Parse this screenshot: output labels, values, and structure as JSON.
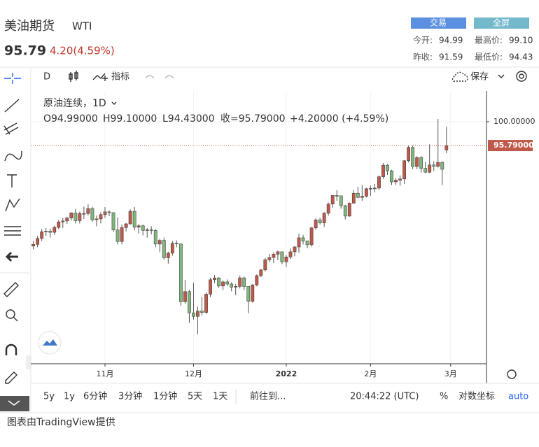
{
  "header": {
    "title": "美油期货",
    "symbol": "WTI",
    "price": "95.79",
    "change": "4.20(4.59%)",
    "buttons": [
      "交易",
      "全屏"
    ],
    "stats": [
      [
        "今开:",
        "94.99"
      ],
      [
        "最高价:",
        "99.10"
      ],
      [
        "昨收:",
        "91.59"
      ],
      [
        "最低价:",
        "94.43"
      ]
    ]
  },
  "toolbar": {
    "interval": "D",
    "indicators": "指标",
    "save": "保存"
  },
  "legend": {
    "name": "原油连续，1D",
    "ohlc": [
      "O94.99000",
      "H99.10000",
      "L94.43000",
      "收=95.79000",
      "+4.20000 (+4.59%)"
    ]
  },
  "bottom_bar": {
    "ranges": [
      "5y",
      "1y",
      "6分钟",
      "3分钟",
      "1分钟",
      "5天",
      "1天"
    ],
    "goto": "前往到...",
    "time": "20:44:22 (UTC)",
    "percent": "%",
    "log": "对数坐标",
    "auto": "auto"
  },
  "footer": "图表由TradingView提供",
  "chart_data": {
    "type": "candlestick",
    "up_color": "#c0584a",
    "down_color": "#7fb87a",
    "grid": true,
    "xlim": [
      -0.6,
      107.5
    ],
    "ylim": [
      57.18,
      105.45
    ],
    "yticks": [
      {
        "value": 100,
        "label": "100.00000"
      }
    ],
    "xticks": [
      {
        "value": 17,
        "label": "11月"
      },
      {
        "value": 38,
        "label": "12月"
      },
      {
        "value": 60,
        "label": "2022"
      },
      {
        "value": 80,
        "label": "2月"
      },
      {
        "value": 99,
        "label": "3月"
      }
    ],
    "price_line": {
      "value": 95.79,
      "label": "95.79000"
    },
    "candles": [
      [
        78.0,
        78.9,
        77.4,
        78.3
      ],
      [
        78.3,
        79.8,
        77.8,
        79.35
      ],
      [
        79.35,
        81.0,
        78.9,
        80.52
      ],
      [
        80.52,
        81.2,
        79.8,
        80.64
      ],
      [
        80.64,
        81.1,
        79.5,
        80.44
      ],
      [
        80.44,
        81.6,
        80.0,
        81.31
      ],
      [
        81.31,
        82.6,
        81.0,
        82.28
      ],
      [
        82.28,
        83.0,
        81.2,
        82.44
      ],
      [
        82.44,
        83.2,
        81.9,
        82.96
      ],
      [
        82.96,
        84.0,
        82.5,
        83.87
      ],
      [
        83.87,
        84.6,
        82.0,
        82.5
      ],
      [
        82.5,
        84.1,
        82.0,
        83.76
      ],
      [
        83.76,
        85.0,
        82.8,
        83.76
      ],
      [
        83.76,
        85.4,
        83.4,
        84.65
      ],
      [
        84.65,
        84.9,
        82.3,
        82.66
      ],
      [
        82.66,
        83.4,
        81.5,
        82.81
      ],
      [
        82.81,
        84.0,
        82.0,
        83.57
      ],
      [
        83.57,
        84.9,
        83.0,
        84.05
      ],
      [
        84.05,
        84.3,
        83.3,
        83.91
      ],
      [
        83.91,
        84.0,
        80.5,
        80.86
      ],
      [
        80.86,
        83.1,
        78.3,
        78.81
      ],
      [
        78.81,
        81.8,
        78.3,
        81.27
      ],
      [
        81.27,
        82.1,
        80.6,
        81.93
      ],
      [
        81.93,
        84.5,
        81.8,
        84.15
      ],
      [
        84.15,
        84.9,
        80.8,
        81.34
      ],
      [
        81.34,
        81.9,
        80.2,
        81.59
      ],
      [
        81.59,
        81.8,
        79.9,
        80.79
      ],
      [
        80.79,
        81.2,
        79.5,
        80.88
      ],
      [
        80.88,
        81.5,
        80.1,
        80.76
      ],
      [
        80.76,
        81.0,
        77.8,
        78.36
      ],
      [
        78.36,
        79.3,
        76.9,
        79.01
      ],
      [
        79.01,
        79.5,
        75.6,
        75.94
      ],
      [
        75.94,
        77.0,
        74.9,
        76.75
      ],
      [
        76.75,
        78.9,
        76.3,
        78.5
      ],
      [
        78.5,
        79.0,
        77.8,
        78.39
      ],
      [
        78.39,
        78.4,
        67.4,
        68.15
      ],
      [
        68.15,
        72.0,
        67.8,
        69.95
      ],
      [
        69.95,
        70.2,
        64.4,
        66.18
      ],
      [
        66.18,
        71.5,
        65.0,
        65.57
      ],
      [
        65.57,
        67.3,
        62.4,
        66.5
      ],
      [
        66.5,
        69.0,
        65.7,
        66.26
      ],
      [
        66.26,
        69.8,
        66.0,
        69.49
      ],
      [
        69.49,
        72.4,
        69.0,
        72.05
      ],
      [
        72.05,
        72.9,
        71.4,
        72.36
      ],
      [
        72.36,
        72.5,
        70.6,
        70.94
      ],
      [
        70.94,
        71.9,
        70.2,
        71.67
      ],
      [
        71.67,
        72.1,
        70.9,
        71.29
      ],
      [
        71.29,
        71.6,
        70.0,
        70.73
      ],
      [
        70.73,
        71.3,
        69.3,
        70.87
      ],
      [
        70.87,
        72.8,
        70.5,
        72.38
      ],
      [
        72.38,
        72.6,
        70.2,
        70.86
      ],
      [
        70.86,
        70.9,
        66.1,
        68.23
      ],
      [
        68.23,
        71.3,
        68.0,
        71.12
      ],
      [
        71.12,
        73.0,
        70.9,
        72.76
      ],
      [
        72.76,
        73.9,
        72.5,
        73.79
      ],
      [
        73.79,
        75.9,
        73.5,
        75.57
      ],
      [
        75.57,
        76.6,
        75.2,
        75.98
      ],
      [
        75.98,
        76.9,
        75.0,
        76.56
      ],
      [
        76.56,
        77.2,
        75.5,
        76.99
      ],
      [
        76.99,
        77.0,
        74.8,
        75.21
      ],
      [
        75.21,
        76.4,
        74.3,
        76.08
      ],
      [
        76.08,
        77.6,
        75.7,
        76.99
      ],
      [
        76.99,
        78.0,
        76.2,
        77.85
      ],
      [
        77.85,
        80.2,
        76.8,
        79.46
      ],
      [
        79.46,
        80.0,
        78.3,
        78.9
      ],
      [
        78.9,
        79.0,
        77.6,
        78.23
      ],
      [
        78.23,
        81.4,
        77.9,
        81.22
      ],
      [
        81.22,
        82.9,
        80.9,
        82.64
      ],
      [
        82.64,
        83.0,
        81.8,
        82.12
      ],
      [
        82.12,
        84.0,
        81.4,
        83.82
      ],
      [
        83.82,
        85.7,
        83.4,
        85.43
      ],
      [
        85.43,
        87.0,
        84.8,
        86.96
      ],
      [
        86.96,
        87.9,
        86.0,
        86.9
      ],
      [
        86.9,
        86.9,
        84.6,
        85.14
      ],
      [
        85.14,
        85.3,
        82.7,
        83.31
      ],
      [
        83.31,
        85.7,
        83.2,
        85.6
      ],
      [
        85.6,
        87.9,
        85.5,
        87.35
      ],
      [
        87.35,
        88.5,
        86.5,
        86.61
      ],
      [
        86.61,
        88.8,
        86.0,
        86.82
      ],
      [
        86.82,
        88.3,
        86.6,
        88.15
      ],
      [
        88.15,
        88.7,
        86.9,
        88.2
      ],
      [
        88.2,
        89.0,
        87.5,
        88.26
      ],
      [
        88.26,
        90.5,
        87.9,
        90.27
      ],
      [
        90.27,
        92.7,
        89.9,
        92.31
      ],
      [
        92.31,
        92.5,
        90.6,
        91.32
      ],
      [
        91.32,
        91.5,
        88.8,
        89.36
      ],
      [
        89.36,
        90.0,
        88.8,
        89.66
      ],
      [
        89.66,
        90.5,
        88.7,
        89.88
      ],
      [
        89.88,
        93.2,
        89.0,
        93.1
      ],
      [
        93.1,
        95.8,
        92.8,
        95.46
      ],
      [
        95.46,
        95.8,
        91.6,
        92.07
      ],
      [
        92.07,
        93.9,
        91.6,
        93.66
      ],
      [
        93.66,
        93.9,
        91.0,
        91.76
      ],
      [
        91.76,
        92.9,
        90.9,
        91.07
      ],
      [
        91.07,
        96.0,
        90.9,
        92.35
      ],
      [
        92.35,
        93.0,
        91.3,
        92.1
      ],
      [
        92.1,
        100.5,
        91.9,
        92.81
      ],
      [
        92.81,
        93.0,
        88.8,
        91.59
      ],
      [
        94.99,
        99.1,
        94.43,
        95.79
      ]
    ]
  }
}
